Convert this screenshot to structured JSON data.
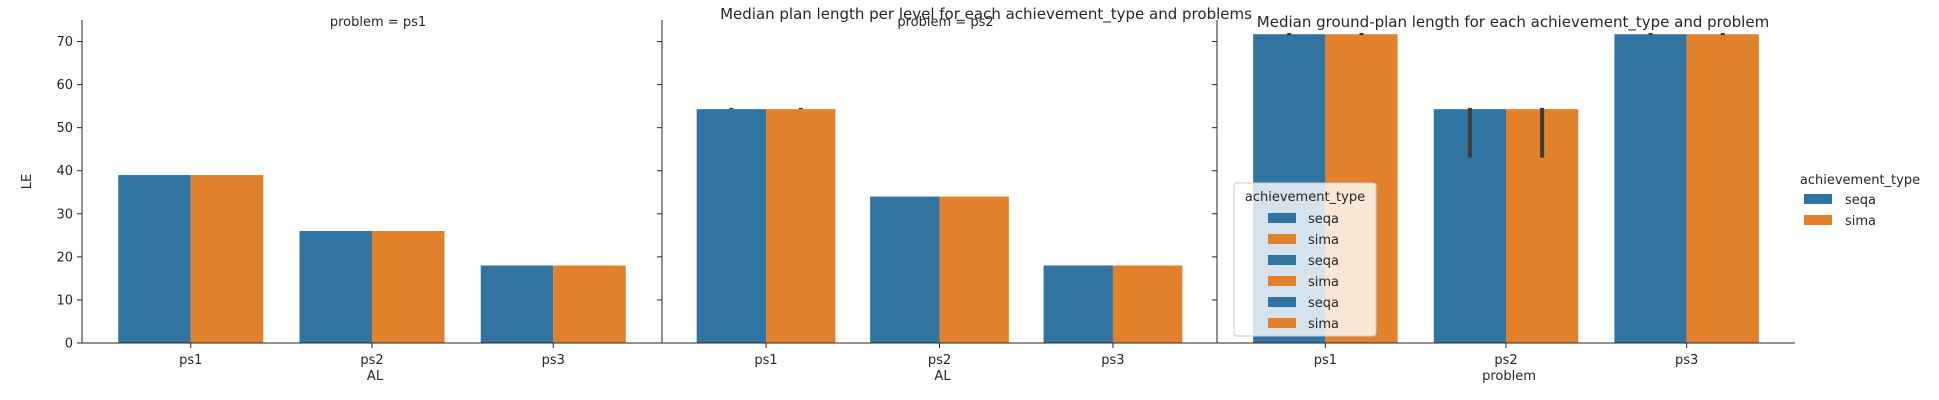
{
  "figure": {
    "suptitle": "Median plan length per level for each achievement_type and problems"
  },
  "colors": {
    "seqa": "#3274a1",
    "sima": "#e1812c",
    "errorbar": "#3b3b3b"
  },
  "chart_data": [
    {
      "type": "bar",
      "title": "problem = ps1",
      "xlabel": "AL",
      "ylabel": "LE",
      "categories": [
        "ps1",
        "ps2",
        "ps3"
      ],
      "ylim": [
        0,
        75
      ],
      "yticks": [
        0,
        10,
        20,
        30,
        40,
        50,
        60,
        70
      ],
      "series": [
        {
          "name": "seqa",
          "values": [
            39,
            26,
            18
          ]
        },
        {
          "name": "sima",
          "values": [
            39,
            26,
            18
          ]
        }
      ]
    },
    {
      "type": "bar",
      "title": "problem = ps2",
      "xlabel": "AL",
      "ylabel": "",
      "categories": [
        "ps1",
        "ps2",
        "ps3"
      ],
      "ylim": [
        0,
        75
      ],
      "yticks": [
        0,
        10,
        20,
        30,
        40,
        50,
        60,
        70
      ],
      "series": [
        {
          "name": "seqa",
          "values": [
            54.3,
            34,
            18
          ],
          "err_high": [
            54.6,
            null,
            null
          ]
        },
        {
          "name": "sima",
          "values": [
            54.3,
            34,
            18
          ],
          "err_high": [
            54.6,
            null,
            null
          ]
        }
      ]
    },
    {
      "type": "bar",
      "title": "Median ground-plan length for each achievement_type and problem",
      "xlabel": "problem",
      "ylabel": "",
      "categories": [
        "ps1",
        "ps2",
        "ps3"
      ],
      "ylim": [
        0,
        75
      ],
      "series": [
        {
          "name": "seqa",
          "values": [
            71.7,
            54.3,
            71.7
          ],
          "err_low": [
            71.5,
            43.5,
            71.5
          ],
          "err_high": [
            72,
            54.6,
            72
          ]
        },
        {
          "name": "sima",
          "values": [
            71.7,
            54.3,
            71.7
          ],
          "err_low": [
            71.5,
            43.5,
            71.5
          ],
          "err_high": [
            72,
            54.6,
            72
          ]
        }
      ],
      "legend": {
        "title": "achievement_type",
        "entries": [
          "seqa",
          "sima",
          "seqa",
          "sima",
          "seqa",
          "sima"
        ],
        "placement": "lower-left"
      }
    }
  ],
  "figure_legend": {
    "title": "achievement_type",
    "entries": [
      "seqa",
      "sima"
    ],
    "placement": "center-right"
  }
}
